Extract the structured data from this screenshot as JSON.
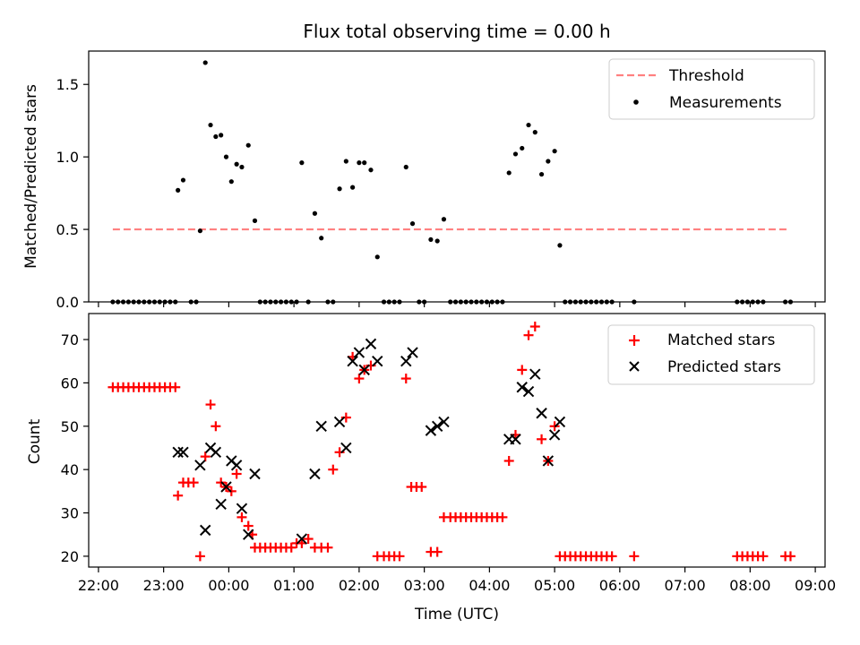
{
  "chart_data": [
    {
      "type": "scatter",
      "title": "Flux total observing time = 0.00 h",
      "xlabel": "",
      "ylabel": "Matched/Predicted stars",
      "x_unit": "hours since 22:00 UTC shown as clock time",
      "xlim": [
        -0.15,
        11.15
      ],
      "ylim": [
        0,
        1.73
      ],
      "yticks": [
        0.0,
        0.5,
        1.0,
        1.5
      ],
      "grid": false,
      "legend_position": "top-right",
      "threshold": {
        "name": "Threshold",
        "color": "#ff8080",
        "value": 0.5,
        "x_start": 0.22,
        "x_end": 10.6
      },
      "series": [
        {
          "name": "Measurements",
          "color": "#000000",
          "marker": "dot",
          "points": [
            [
              0.22,
              0
            ],
            [
              0.3,
              0
            ],
            [
              0.38,
              0
            ],
            [
              0.46,
              0
            ],
            [
              0.54,
              0
            ],
            [
              0.62,
              0
            ],
            [
              0.7,
              0
            ],
            [
              0.78,
              0
            ],
            [
              0.86,
              0
            ],
            [
              0.94,
              0
            ],
            [
              1.02,
              0
            ],
            [
              1.1,
              0
            ],
            [
              1.18,
              0
            ],
            [
              1.22,
              0.77
            ],
            [
              1.3,
              0.84
            ],
            [
              1.42,
              0
            ],
            [
              1.5,
              0
            ],
            [
              1.56,
              0.49
            ],
            [
              1.64,
              1.65
            ],
            [
              1.72,
              1.22
            ],
            [
              1.8,
              1.14
            ],
            [
              1.88,
              1.15
            ],
            [
              1.96,
              1.0
            ],
            [
              2.04,
              0.83
            ],
            [
              2.12,
              0.95
            ],
            [
              2.2,
              0.93
            ],
            [
              2.3,
              1.08
            ],
            [
              2.4,
              0.56
            ],
            [
              2.48,
              0
            ],
            [
              2.56,
              0
            ],
            [
              2.64,
              0
            ],
            [
              2.72,
              0
            ],
            [
              2.8,
              0
            ],
            [
              2.88,
              0
            ],
            [
              2.96,
              0
            ],
            [
              3.04,
              0
            ],
            [
              3.12,
              0.96
            ],
            [
              3.22,
              0
            ],
            [
              3.32,
              0.61
            ],
            [
              3.42,
              0.44
            ],
            [
              3.52,
              0
            ],
            [
              3.6,
              0
            ],
            [
              3.7,
              0.78
            ],
            [
              3.8,
              0.97
            ],
            [
              3.9,
              0.79
            ],
            [
              4.0,
              0.96
            ],
            [
              4.08,
              0.96
            ],
            [
              4.18,
              0.91
            ],
            [
              4.28,
              0.31
            ],
            [
              4.38,
              0
            ],
            [
              4.46,
              0
            ],
            [
              4.54,
              0
            ],
            [
              4.62,
              0
            ],
            [
              4.72,
              0.93
            ],
            [
              4.82,
              0.54
            ],
            [
              4.92,
              0
            ],
            [
              5.0,
              0
            ],
            [
              5.1,
              0.43
            ],
            [
              5.2,
              0.42
            ],
            [
              5.3,
              0.57
            ],
            [
              5.4,
              0
            ],
            [
              5.48,
              0
            ],
            [
              5.56,
              0
            ],
            [
              5.64,
              0
            ],
            [
              5.72,
              0
            ],
            [
              5.8,
              0
            ],
            [
              5.88,
              0
            ],
            [
              5.96,
              0
            ],
            [
              6.04,
              0
            ],
            [
              6.12,
              0
            ],
            [
              6.2,
              0
            ],
            [
              6.3,
              0.89
            ],
            [
              6.4,
              1.02
            ],
            [
              6.5,
              1.06
            ],
            [
              6.6,
              1.22
            ],
            [
              6.7,
              1.17
            ],
            [
              6.8,
              0.88
            ],
            [
              6.9,
              0.97
            ],
            [
              7.0,
              1.04
            ],
            [
              7.08,
              0.39
            ],
            [
              7.16,
              0
            ],
            [
              7.24,
              0
            ],
            [
              7.32,
              0
            ],
            [
              7.4,
              0
            ],
            [
              7.48,
              0
            ],
            [
              7.56,
              0
            ],
            [
              7.64,
              0
            ],
            [
              7.72,
              0
            ],
            [
              7.8,
              0
            ],
            [
              7.88,
              0
            ],
            [
              8.22,
              0
            ],
            [
              9.8,
              0
            ],
            [
              9.88,
              0
            ],
            [
              9.96,
              0
            ],
            [
              10.04,
              0
            ],
            [
              10.12,
              0
            ],
            [
              10.2,
              0
            ],
            [
              10.54,
              0
            ],
            [
              10.62,
              0
            ]
          ]
        }
      ]
    },
    {
      "type": "scatter",
      "title": "",
      "xlabel": "Time (UTC)",
      "ylabel": "Count",
      "xlim": [
        -0.15,
        11.15
      ],
      "ylim": [
        17.5,
        76
      ],
      "yticks": [
        20,
        30,
        40,
        50,
        60,
        70
      ],
      "xticks": [
        0,
        1,
        2,
        3,
        4,
        5,
        6,
        7,
        8,
        9,
        10,
        11
      ],
      "xtick_labels": [
        "22:00",
        "23:00",
        "00:00",
        "01:00",
        "02:00",
        "03:00",
        "04:00",
        "05:00",
        "06:00",
        "07:00",
        "08:00",
        "09:00"
      ],
      "grid": false,
      "legend_position": "top-right",
      "series": [
        {
          "name": "Matched stars",
          "color": "#ff0000",
          "marker": "plus",
          "points": [
            [
              0.22,
              59
            ],
            [
              0.3,
              59
            ],
            [
              0.38,
              59
            ],
            [
              0.46,
              59
            ],
            [
              0.54,
              59
            ],
            [
              0.62,
              59
            ],
            [
              0.7,
              59
            ],
            [
              0.78,
              59
            ],
            [
              0.86,
              59
            ],
            [
              0.94,
              59
            ],
            [
              1.02,
              59
            ],
            [
              1.1,
              59
            ],
            [
              1.18,
              59
            ],
            [
              1.22,
              34
            ],
            [
              1.3,
              37
            ],
            [
              1.38,
              37
            ],
            [
              1.46,
              37
            ],
            [
              1.56,
              20
            ],
            [
              1.64,
              43
            ],
            [
              1.72,
              55
            ],
            [
              1.8,
              50
            ],
            [
              1.88,
              37
            ],
            [
              1.96,
              36
            ],
            [
              2.04,
              35
            ],
            [
              2.12,
              39
            ],
            [
              2.2,
              29
            ],
            [
              2.3,
              27
            ],
            [
              2.36,
              25
            ],
            [
              2.4,
              22
            ],
            [
              2.48,
              22
            ],
            [
              2.56,
              22
            ],
            [
              2.64,
              22
            ],
            [
              2.72,
              22
            ],
            [
              2.8,
              22
            ],
            [
              2.88,
              22
            ],
            [
              2.96,
              22
            ],
            [
              3.04,
              23
            ],
            [
              3.12,
              23
            ],
            [
              3.22,
              24
            ],
            [
              3.32,
              22
            ],
            [
              3.42,
              22
            ],
            [
              3.52,
              22
            ],
            [
              3.6,
              40
            ],
            [
              3.7,
              44
            ],
            [
              3.8,
              52
            ],
            [
              3.9,
              66
            ],
            [
              4.0,
              61
            ],
            [
              4.08,
              63
            ],
            [
              4.18,
              64
            ],
            [
              4.28,
              20
            ],
            [
              4.38,
              20
            ],
            [
              4.46,
              20
            ],
            [
              4.54,
              20
            ],
            [
              4.62,
              20
            ],
            [
              4.72,
              61
            ],
            [
              4.8,
              36
            ],
            [
              4.88,
              36
            ],
            [
              4.96,
              36
            ],
            [
              5.1,
              21
            ],
            [
              5.2,
              21
            ],
            [
              5.3,
              29
            ],
            [
              5.4,
              29
            ],
            [
              5.48,
              29
            ],
            [
              5.56,
              29
            ],
            [
              5.64,
              29
            ],
            [
              5.72,
              29
            ],
            [
              5.8,
              29
            ],
            [
              5.88,
              29
            ],
            [
              5.96,
              29
            ],
            [
              6.04,
              29
            ],
            [
              6.12,
              29
            ],
            [
              6.2,
              29
            ],
            [
              6.3,
              42
            ],
            [
              6.4,
              48
            ],
            [
              6.5,
              63
            ],
            [
              6.6,
              71
            ],
            [
              6.7,
              73
            ],
            [
              6.8,
              47
            ],
            [
              6.9,
              42
            ],
            [
              7.0,
              50
            ],
            [
              7.08,
              20
            ],
            [
              7.16,
              20
            ],
            [
              7.24,
              20
            ],
            [
              7.32,
              20
            ],
            [
              7.4,
              20
            ],
            [
              7.48,
              20
            ],
            [
              7.56,
              20
            ],
            [
              7.64,
              20
            ],
            [
              7.72,
              20
            ],
            [
              7.8,
              20
            ],
            [
              7.88,
              20
            ],
            [
              8.22,
              20
            ],
            [
              9.8,
              20
            ],
            [
              9.88,
              20
            ],
            [
              9.96,
              20
            ],
            [
              10.04,
              20
            ],
            [
              10.12,
              20
            ],
            [
              10.2,
              20
            ],
            [
              10.54,
              20
            ],
            [
              10.62,
              20
            ]
          ]
        },
        {
          "name": "Predicted stars",
          "color": "#000000",
          "marker": "x",
          "points": [
            [
              1.22,
              44
            ],
            [
              1.3,
              44
            ],
            [
              1.56,
              41
            ],
            [
              1.64,
              26
            ],
            [
              1.72,
              45
            ],
            [
              1.8,
              44
            ],
            [
              1.88,
              32
            ],
            [
              1.96,
              36
            ],
            [
              2.04,
              42
            ],
            [
              2.12,
              41
            ],
            [
              2.2,
              31
            ],
            [
              2.3,
              25
            ],
            [
              2.4,
              39
            ],
            [
              3.12,
              24
            ],
            [
              3.32,
              39
            ],
            [
              3.42,
              50
            ],
            [
              3.7,
              51
            ],
            [
              3.8,
              45
            ],
            [
              3.9,
              65
            ],
            [
              4.0,
              67
            ],
            [
              4.08,
              63
            ],
            [
              4.18,
              69
            ],
            [
              4.28,
              65
            ],
            [
              4.72,
              65
            ],
            [
              4.82,
              67
            ],
            [
              5.1,
              49
            ],
            [
              5.2,
              50
            ],
            [
              5.3,
              51
            ],
            [
              6.3,
              47
            ],
            [
              6.4,
              47
            ],
            [
              6.5,
              59
            ],
            [
              6.6,
              58
            ],
            [
              6.7,
              62
            ],
            [
              6.8,
              53
            ],
            [
              6.9,
              42
            ],
            [
              7.0,
              48
            ],
            [
              7.08,
              51
            ]
          ]
        }
      ]
    }
  ]
}
